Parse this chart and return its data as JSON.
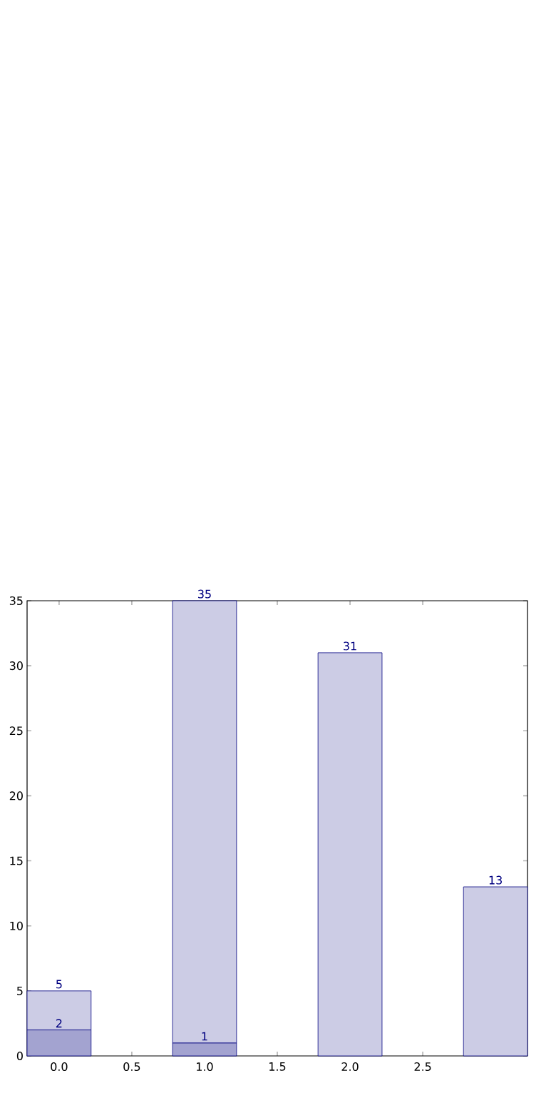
{
  "chart_data": {
    "type": "bar",
    "x": [
      0,
      1,
      2,
      3
    ],
    "stacked": true,
    "series": [
      {
        "color": "#a3a3d0",
        "values": [
          2,
          1,
          null,
          null
        ],
        "value_labels": [
          "2",
          "1",
          null,
          null
        ]
      },
      {
        "color": "#ccccE5",
        "values": [
          3,
          34,
          31,
          13
        ]
      }
    ],
    "totals": [
      "5",
      "35",
      "31",
      "13"
    ],
    "xlim": [
      -0.22,
      3.22
    ],
    "ylim": [
      0,
      35
    ],
    "xticks": [
      {
        "value": 0,
        "label": "0.0"
      },
      {
        "value": 0.5,
        "label": "0.5"
      },
      {
        "value": 1,
        "label": "1.0"
      },
      {
        "value": 1.5,
        "label": "1.5"
      },
      {
        "value": 2,
        "label": "2.0"
      },
      {
        "value": 2.5,
        "label": "2.5"
      }
    ],
    "yticks": [
      0,
      5,
      10,
      15,
      20,
      25,
      30,
      35
    ]
  }
}
